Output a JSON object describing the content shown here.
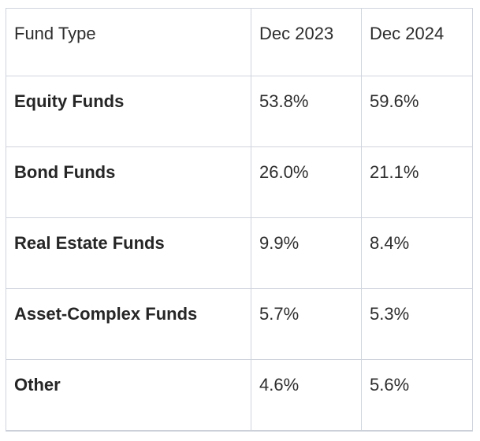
{
  "table": {
    "headers": [
      "Fund Type",
      "Dec 2023",
      "Dec 2024"
    ],
    "rows": [
      {
        "cells": [
          "Equity Funds",
          "53.8%",
          "59.6%"
        ]
      },
      {
        "cells": [
          "Bond Funds",
          "26.0%",
          "21.1%"
        ]
      },
      {
        "cells": [
          "Real Estate Funds",
          "9.9%",
          "8.4%"
        ]
      },
      {
        "cells": [
          "Asset-Complex Funds",
          "5.7%",
          "5.3%"
        ]
      },
      {
        "cells": [
          "Other",
          "4.6%",
          "5.6%"
        ]
      }
    ]
  },
  "chart_data": {
    "type": "table",
    "title": "",
    "columns": [
      "Fund Type",
      "Dec 2023",
      "Dec 2024"
    ],
    "categories": [
      "Equity Funds",
      "Bond Funds",
      "Real Estate Funds",
      "Asset-Complex Funds",
      "Other"
    ],
    "series": [
      {
        "name": "Dec 2023",
        "values": [
          53.8,
          26.0,
          9.9,
          5.7,
          4.6
        ]
      },
      {
        "name": "Dec 2024",
        "values": [
          59.6,
          21.1,
          8.4,
          5.3,
          5.6
        ]
      }
    ],
    "value_unit": "%",
    "legend_position": "none",
    "grid": true
  },
  "colors": {
    "background": "#ffffff",
    "border": "#d0d4dd",
    "border_bottom": "#cbd0d9",
    "text": "#2d2d2d",
    "label_text": "#262626"
  }
}
